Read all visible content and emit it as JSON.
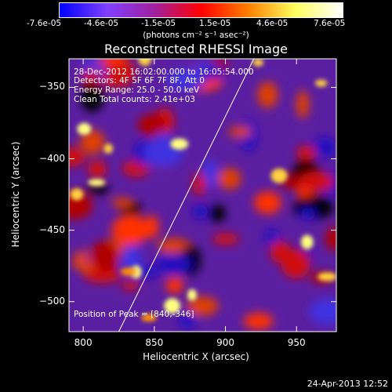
{
  "colorbar": {
    "ticks": [
      "-7.6e-05",
      "-4.6e-05",
      "-1.5e-05",
      "1.5e-05",
      "4.6e-05",
      "7.6e-05"
    ],
    "unit_label": "(photons cm⁻² s⁻¹ asec⁻²)",
    "colors": [
      "#0000ff",
      "#8040ff",
      "#a020a0",
      "#ff0000",
      "#ff8000",
      "#ffff60",
      "#ffffff"
    ]
  },
  "chart_data": {
    "type": "heatmap",
    "title": "Reconstructed RHESSI Image",
    "xlabel": "Heliocentric X (arcsec)",
    "ylabel": "Heliocentric Y (arcsec)",
    "xlim": [
      790,
      978
    ],
    "ylim": [
      -521,
      -330
    ],
    "x_ticks": [
      800,
      850,
      900,
      950
    ],
    "y_ticks": [
      -350,
      -400,
      -450,
      -500
    ],
    "x_tick_labels": [
      "800",
      "850",
      "900",
      "950"
    ],
    "y_tick_labels": [
      "−350",
      "−400",
      "−450",
      "−500"
    ],
    "colorbar_range": [
      -7.6e-05,
      7.6e-05
    ],
    "peak": [
      840,
      -346
    ],
    "limb_line": [
      [
        825,
        -521
      ],
      [
        920,
        -330
      ]
    ],
    "annotations": {
      "time": "28-Dec-2012 16:02:00.000 to 16:05:54.000",
      "detectors": "Detectors: 4F 5F 6F 7F 8F, Att 0",
      "energy": "Energy Range: 25.0 - 50.0 keV",
      "method": "Clean     Total counts: 2.41e+03",
      "peak_text": "Position of Peak = [840,-346]"
    }
  },
  "footer": {
    "date": "24-Apr-2013 12:52"
  }
}
